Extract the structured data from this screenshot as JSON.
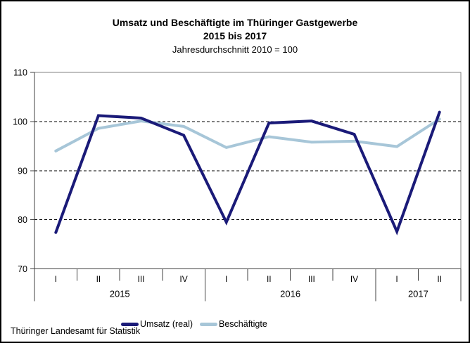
{
  "header": {
    "title_line1": "Umsatz und Beschäftigte im Thüringer Gastgewerbe",
    "title_line2": "2015 bis 2017",
    "subtitle": "Jahresdurchschnitt 2010 = 100"
  },
  "chart_data": {
    "type": "line",
    "title": "Umsatz und Beschäftigte im Thüringer Gastgewerbe 2015 bis 2017",
    "subtitle": "Jahresdurchschnitt 2010 = 100",
    "x_groups": [
      {
        "year": "2015",
        "quarters": [
          "I",
          "II",
          "III",
          "IV"
        ]
      },
      {
        "year": "2016",
        "quarters": [
          "I",
          "II",
          "III",
          "IV"
        ]
      },
      {
        "year": "2017",
        "quarters": [
          "I",
          "II"
        ]
      }
    ],
    "categories": [
      "I",
      "II",
      "III",
      "IV",
      "I",
      "II",
      "III",
      "IV",
      "I",
      "II"
    ],
    "series": [
      {
        "name": "Umsatz (real)",
        "color": "#1A1A78",
        "values": [
          77.4,
          101.2,
          100.7,
          97.2,
          79.5,
          99.7,
          100.1,
          97.4,
          77.6,
          101.9
        ]
      },
      {
        "name": "Beschäftigte",
        "color": "#A7C6D8",
        "values": [
          94.0,
          98.6,
          100.1,
          99.0,
          94.7,
          96.9,
          95.8,
          96.0,
          94.9,
          100.5
        ]
      }
    ],
    "ylim": [
      70,
      110
    ],
    "yticks": [
      70,
      80,
      90,
      100,
      110
    ],
    "grid": "horizontal dashed at 80, 90, 100",
    "legend_position": "bottom-center",
    "colors": {
      "plot_border": "#808080",
      "axis": "#404040",
      "gridline": "#000000"
    }
  },
  "footer": {
    "source": "Thüringer Landesamt für Statistik"
  }
}
